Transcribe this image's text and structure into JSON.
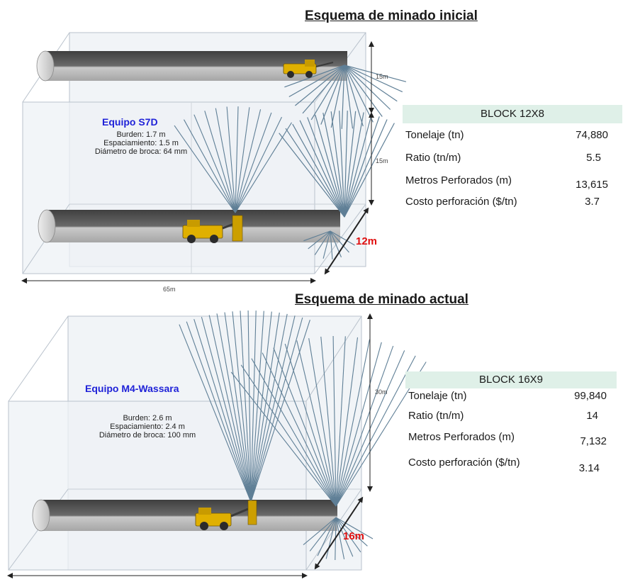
{
  "scheme_initial": {
    "title": "Esquema de minado inicial",
    "equipment": {
      "name": "Equipo S7D",
      "specs": [
        "Burden: 1.7 m",
        "Espaciamiento: 1.5 m",
        "Diámetro de broca: 64 mm"
      ]
    },
    "dims": {
      "height_upper": "15m",
      "height_lower": "15m",
      "length": "65m",
      "depth": "12m"
    },
    "table": {
      "header": "BLOCK 12X8",
      "rows": [
        {
          "label": "Tonelaje (tn)",
          "value": "74,880"
        },
        {
          "label": "Ratio (tn/m)",
          "value": "5.5"
        },
        {
          "label": "Metros Perforados (m)",
          "value": "13,615"
        },
        {
          "label": "Costo perforación ($/tn)",
          "value": "3.7"
        }
      ]
    }
  },
  "scheme_current": {
    "title": "Esquema de minado actual",
    "equipment": {
      "name": "Equipo M4-Wassara",
      "specs": [
        "Burden: 2.6 m",
        "Espaciamiento: 2.4 m",
        "Diámetro de broca: 100 mm"
      ]
    },
    "dims": {
      "height": "30m",
      "depth": "16m"
    },
    "table": {
      "header": "BLOCK 16X9",
      "rows": [
        {
          "label": "Tonelaje (tn)",
          "value": "99,840"
        },
        {
          "label": "Ratio (tn/m)",
          "value": "14"
        },
        {
          "label": "Metros Perforados (m)",
          "value": "7,132"
        },
        {
          "label": "Costo perforación ($/tn)",
          "value": "3.14"
        }
      ]
    }
  },
  "colors": {
    "equipment_label": "#1f22d8",
    "depth_label": "#e01010",
    "table_header_bg": "#dff0e8",
    "blast_fan": "#5f7f96",
    "drift_dark": "#5a5a5a",
    "drift_light": "#bdbdbd",
    "block_fill": "#eef2f6",
    "machine": "#e0b000"
  },
  "icons": [
    "drill-rig-icon",
    "blast-fan-icon",
    "dimension-arrow-icon"
  ]
}
